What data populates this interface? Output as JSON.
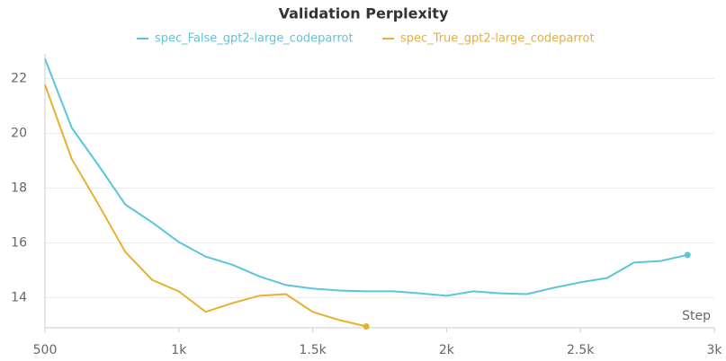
{
  "chart_data": {
    "type": "line",
    "title": "Validation Perplexity",
    "xlabel": "Step",
    "x": [
      500,
      600,
      700,
      800,
      900,
      1000,
      1100,
      1200,
      1300,
      1400,
      1500,
      1600,
      1700,
      1800,
      1900,
      2000,
      2100,
      2200,
      2300,
      2400,
      2500,
      2600,
      2700,
      2800,
      2900
    ],
    "series": [
      {
        "name": "spec_False_gpt2-large_codeparrot",
        "color": "#5bc5db",
        "values": [
          22.72,
          20.2,
          18.83,
          17.4,
          16.75,
          16.03,
          15.5,
          15.2,
          14.78,
          14.46,
          14.33,
          14.26,
          14.23,
          14.23,
          14.16,
          14.07,
          14.23,
          14.16,
          14.13,
          14.36,
          14.56,
          14.72,
          15.28,
          15.34,
          15.56
        ]
      },
      {
        "name": "spec_True_gpt2-large_codeparrot",
        "color": "#e8b030",
        "values": [
          21.77,
          19.06,
          17.4,
          15.67,
          14.65,
          14.23,
          13.48,
          13.8,
          14.07,
          14.13,
          13.48,
          13.18,
          12.95,
          null,
          null,
          null,
          null,
          null,
          null,
          null,
          null,
          null,
          null,
          null,
          null
        ]
      }
    ],
    "xlim": [
      500,
      3000
    ],
    "xticks": [
      500,
      {
        "value": 1000,
        "label": "1k"
      },
      {
        "value": 1500,
        "label": "1.5k"
      },
      {
        "value": 2000,
        "label": "2k"
      },
      {
        "value": 2500,
        "label": "2.5k"
      },
      {
        "value": 3000,
        "label": "3k"
      }
    ],
    "ylim": [
      12.9,
      22.9
    ],
    "yticks": [
      14,
      16,
      18,
      20,
      22
    ],
    "grid": true
  }
}
